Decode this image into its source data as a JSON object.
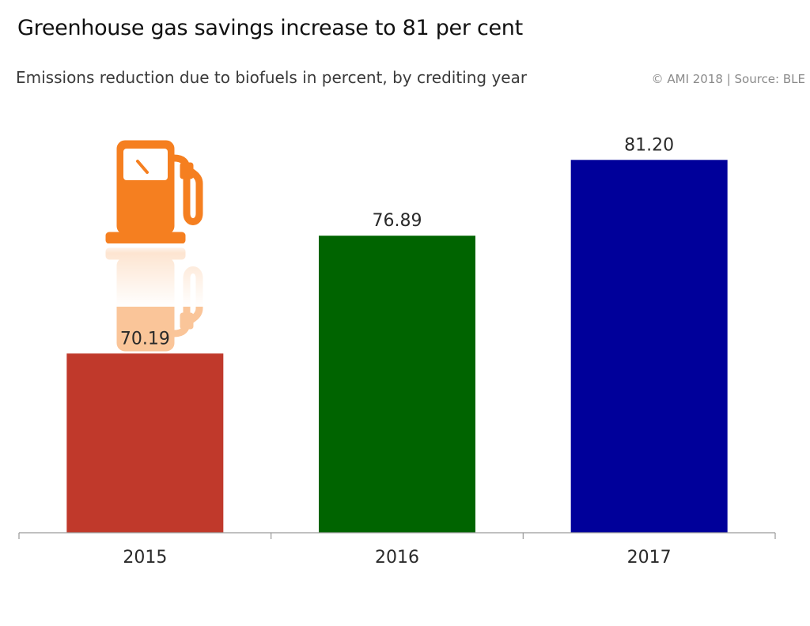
{
  "header": {
    "title": "Greenhouse gas savings increase to 81 per cent",
    "subtitle": "Emissions reduction due to biofuels in percent, by crediting year",
    "source": "© AMI 2018 | Source: BLE"
  },
  "icon": {
    "name": "fuel-pump-icon",
    "color": "#f57f20"
  },
  "chart_data": {
    "type": "bar",
    "title": "Greenhouse gas savings increase to 81 per cent",
    "subtitle": "Emissions reduction due to biofuels in percent, by crediting year",
    "xlabel": "",
    "ylabel": "",
    "categories": [
      "2015",
      "2016",
      "2017"
    ],
    "values": [
      70.19,
      76.89,
      81.2
    ],
    "value_labels": [
      "70.19",
      "76.89",
      "81.20"
    ],
    "colors": [
      "#c0392b",
      "#006400",
      "#00009a"
    ],
    "ylim": [
      60,
      84
    ],
    "grid": false,
    "legend": "none"
  }
}
